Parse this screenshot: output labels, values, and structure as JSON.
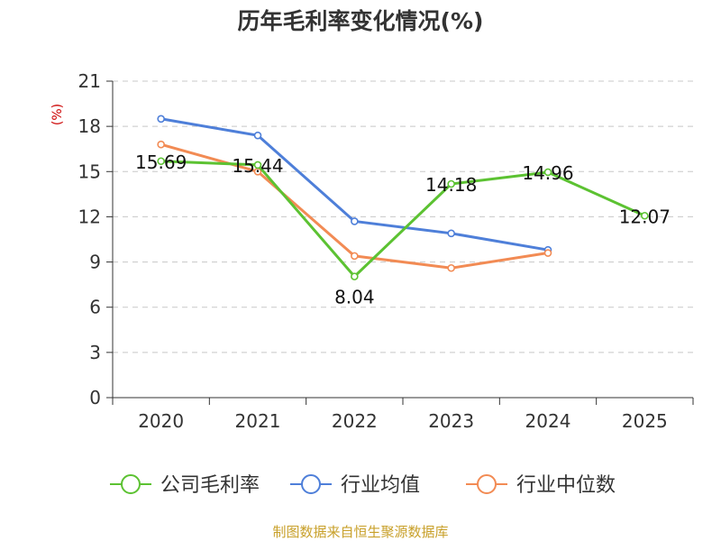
{
  "chart_data": {
    "type": "line",
    "title": "历年毛利率变化情况(%)",
    "unit_label": "(%)",
    "categories": [
      "2020",
      "2021",
      "2022",
      "2023",
      "2024",
      "2025"
    ],
    "ylim": [
      0,
      21
    ],
    "yticks": [
      0,
      3,
      6,
      9,
      12,
      15,
      18,
      21
    ],
    "grid": true,
    "legend_position": "bottom",
    "series": [
      {
        "name": "公司毛利率",
        "color": "#5cc232",
        "values": [
          15.69,
          15.44,
          8.04,
          14.18,
          14.96,
          12.07
        ],
        "labels": [
          "15.69",
          "15.44",
          "8.04",
          "14.18",
          "14.96",
          "12.07"
        ]
      },
      {
        "name": "行业均值",
        "color": "#4e7fd9",
        "values": [
          18.5,
          17.4,
          11.7,
          10.9,
          9.8,
          null
        ]
      },
      {
        "name": "行业中位数",
        "color": "#f28b54",
        "values": [
          16.8,
          15.0,
          9.4,
          8.6,
          9.6,
          null
        ]
      }
    ],
    "source": "制图数据来自恒生聚源数据库"
  }
}
